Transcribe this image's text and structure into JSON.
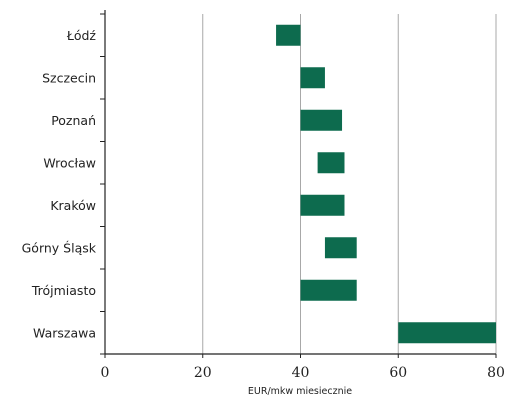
{
  "chart_data": {
    "type": "bar",
    "orientation": "horizontal",
    "style": "floating-range",
    "title": "",
    "xlabel": "EUR/mkw miesiecznie",
    "ylabel": "",
    "xlim": [
      0,
      80
    ],
    "x_ticks": [
      0,
      20,
      40,
      60,
      80
    ],
    "grid": "vertical",
    "legend": "none",
    "bar_color": "#0d6b4e",
    "categories": [
      "Łódź",
      "Szczecin",
      "Poznań",
      "Wrocław",
      "Kraków",
      "Górny Śląsk",
      "Trójmiasto",
      "Warszawa"
    ],
    "ranges": [
      {
        "min": 35,
        "max": 40
      },
      {
        "min": 40,
        "max": 45
      },
      {
        "min": 40,
        "max": 48.5
      },
      {
        "min": 43.5,
        "max": 49
      },
      {
        "min": 40,
        "max": 49
      },
      {
        "min": 45,
        "max": 51.5
      },
      {
        "min": 40,
        "max": 51.5
      },
      {
        "min": 60,
        "max": 80
      }
    ]
  }
}
